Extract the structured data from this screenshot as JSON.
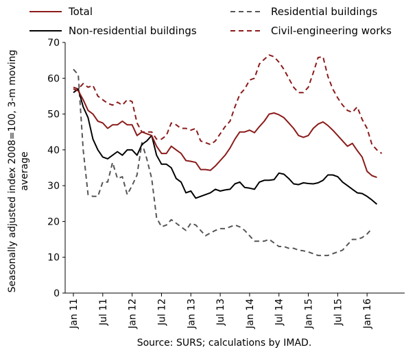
{
  "chart_data": {
    "type": "line",
    "ylabel": "Seasonally adjusted index 2008=100, 3-m moving average",
    "ylabel_lines": [
      "Seasonally adjusted index 2008=100, 3-m moving",
      "average"
    ],
    "xlabel": "",
    "source_note": "Source: SURS; calculations by IMAD.",
    "ylim": [
      0,
      70
    ],
    "yticks": [
      0,
      10,
      20,
      30,
      40,
      50,
      60,
      70
    ],
    "x_start": "Jan 11",
    "x_count": 67,
    "xticks": [
      {
        "i": 0,
        "label": "Jan 11"
      },
      {
        "i": 6,
        "label": "Jul 11"
      },
      {
        "i": 12,
        "label": "Jan 12"
      },
      {
        "i": 18,
        "label": "Jul 12"
      },
      {
        "i": 24,
        "label": "Jan 13"
      },
      {
        "i": 30,
        "label": "Jul 13"
      },
      {
        "i": 36,
        "label": "Jan 14"
      },
      {
        "i": 42,
        "label": "Jul 14"
      },
      {
        "i": 48,
        "label": "Jan 15"
      },
      {
        "i": 54,
        "label": "Jul 15"
      },
      {
        "i": 60,
        "label": "Jan 16"
      }
    ],
    "grid": false,
    "legend_position": "top",
    "series": [
      {
        "name": "Total",
        "color": "#8b1a1a",
        "dash": "solid",
        "values": [
          57,
          56.5,
          54,
          51,
          50,
          48,
          47.5,
          46,
          47,
          47,
          48,
          47,
          47,
          44,
          45,
          44.5,
          44,
          41,
          39,
          39,
          41,
          40,
          39,
          37,
          36.8,
          36.5,
          34.5,
          34.5,
          34.3,
          35.5,
          37,
          38.5,
          40.5,
          43,
          45,
          45,
          45.5,
          44.8,
          46.5,
          48,
          50,
          50.3,
          49.8,
          49,
          47.5,
          46,
          44,
          43.5,
          44,
          46,
          47.2,
          47.8,
          46.8,
          45.5,
          44,
          42.5,
          41,
          41.8,
          39.8,
          38,
          34,
          32.8,
          32.3
        ]
      },
      {
        "name": "Non-residential buildings",
        "color": "#000000",
        "dash": "solid",
        "values": [
          56,
          57,
          52,
          49,
          43,
          40,
          38,
          37.5,
          38.5,
          39.5,
          38.5,
          40,
          40,
          38.5,
          41.5,
          42.5,
          44,
          38.5,
          36,
          36,
          35,
          32,
          31,
          28,
          28.5,
          26.5,
          27,
          27.5,
          28,
          29,
          28.5,
          28.8,
          29,
          30.5,
          31,
          29.5,
          29.3,
          29,
          31,
          31.5,
          31.5,
          31.7,
          33.5,
          33.2,
          32,
          30.5,
          30.3,
          30.8,
          30.6,
          30.5,
          30.8,
          31.5,
          33,
          33,
          32.5,
          31,
          30,
          29,
          28,
          27.8,
          27,
          26,
          24.8
        ]
      },
      {
        "name": "Residential buildings",
        "color": "#555555",
        "dash": "dash",
        "values": [
          62.5,
          61,
          40,
          27.5,
          27,
          27,
          31,
          31,
          36.5,
          32,
          32.5,
          27.5,
          30,
          33,
          42,
          37.5,
          32,
          21,
          18.5,
          19,
          20.5,
          19.5,
          18.5,
          17.5,
          19.5,
          19,
          17.5,
          16,
          16.8,
          17.5,
          18,
          18,
          18.5,
          19,
          18.5,
          17.5,
          16,
          14.5,
          14.5,
          14.5,
          15,
          14,
          13,
          13,
          12.5,
          12.5,
          12,
          11.8,
          11.5,
          11,
          10.5,
          10.5,
          10.5,
          11,
          11.5,
          12,
          13.5,
          15,
          15,
          15.5,
          16.5,
          18
        ]
      },
      {
        "name": "Civil-engineering works",
        "color": "#8b1a1a",
        "dash": "dash",
        "values": [
          57.5,
          57,
          58.5,
          57.5,
          58,
          55,
          54,
          53,
          52.5,
          53.3,
          52.5,
          54,
          53.5,
          47.5,
          45,
          45,
          45,
          43,
          43,
          44,
          47.5,
          47,
          46,
          46,
          45.5,
          46,
          42.5,
          42,
          41.5,
          42.5,
          44.5,
          46.5,
          48,
          52,
          55.5,
          57,
          59.5,
          60,
          64,
          65.3,
          66.5,
          66,
          64.5,
          62.5,
          60,
          57.5,
          56,
          56,
          57.5,
          61.5,
          65.8,
          66,
          60.5,
          57,
          54.5,
          52.5,
          51,
          50.5,
          52,
          48.5,
          46,
          41.5,
          40,
          39
        ]
      }
    ]
  }
}
